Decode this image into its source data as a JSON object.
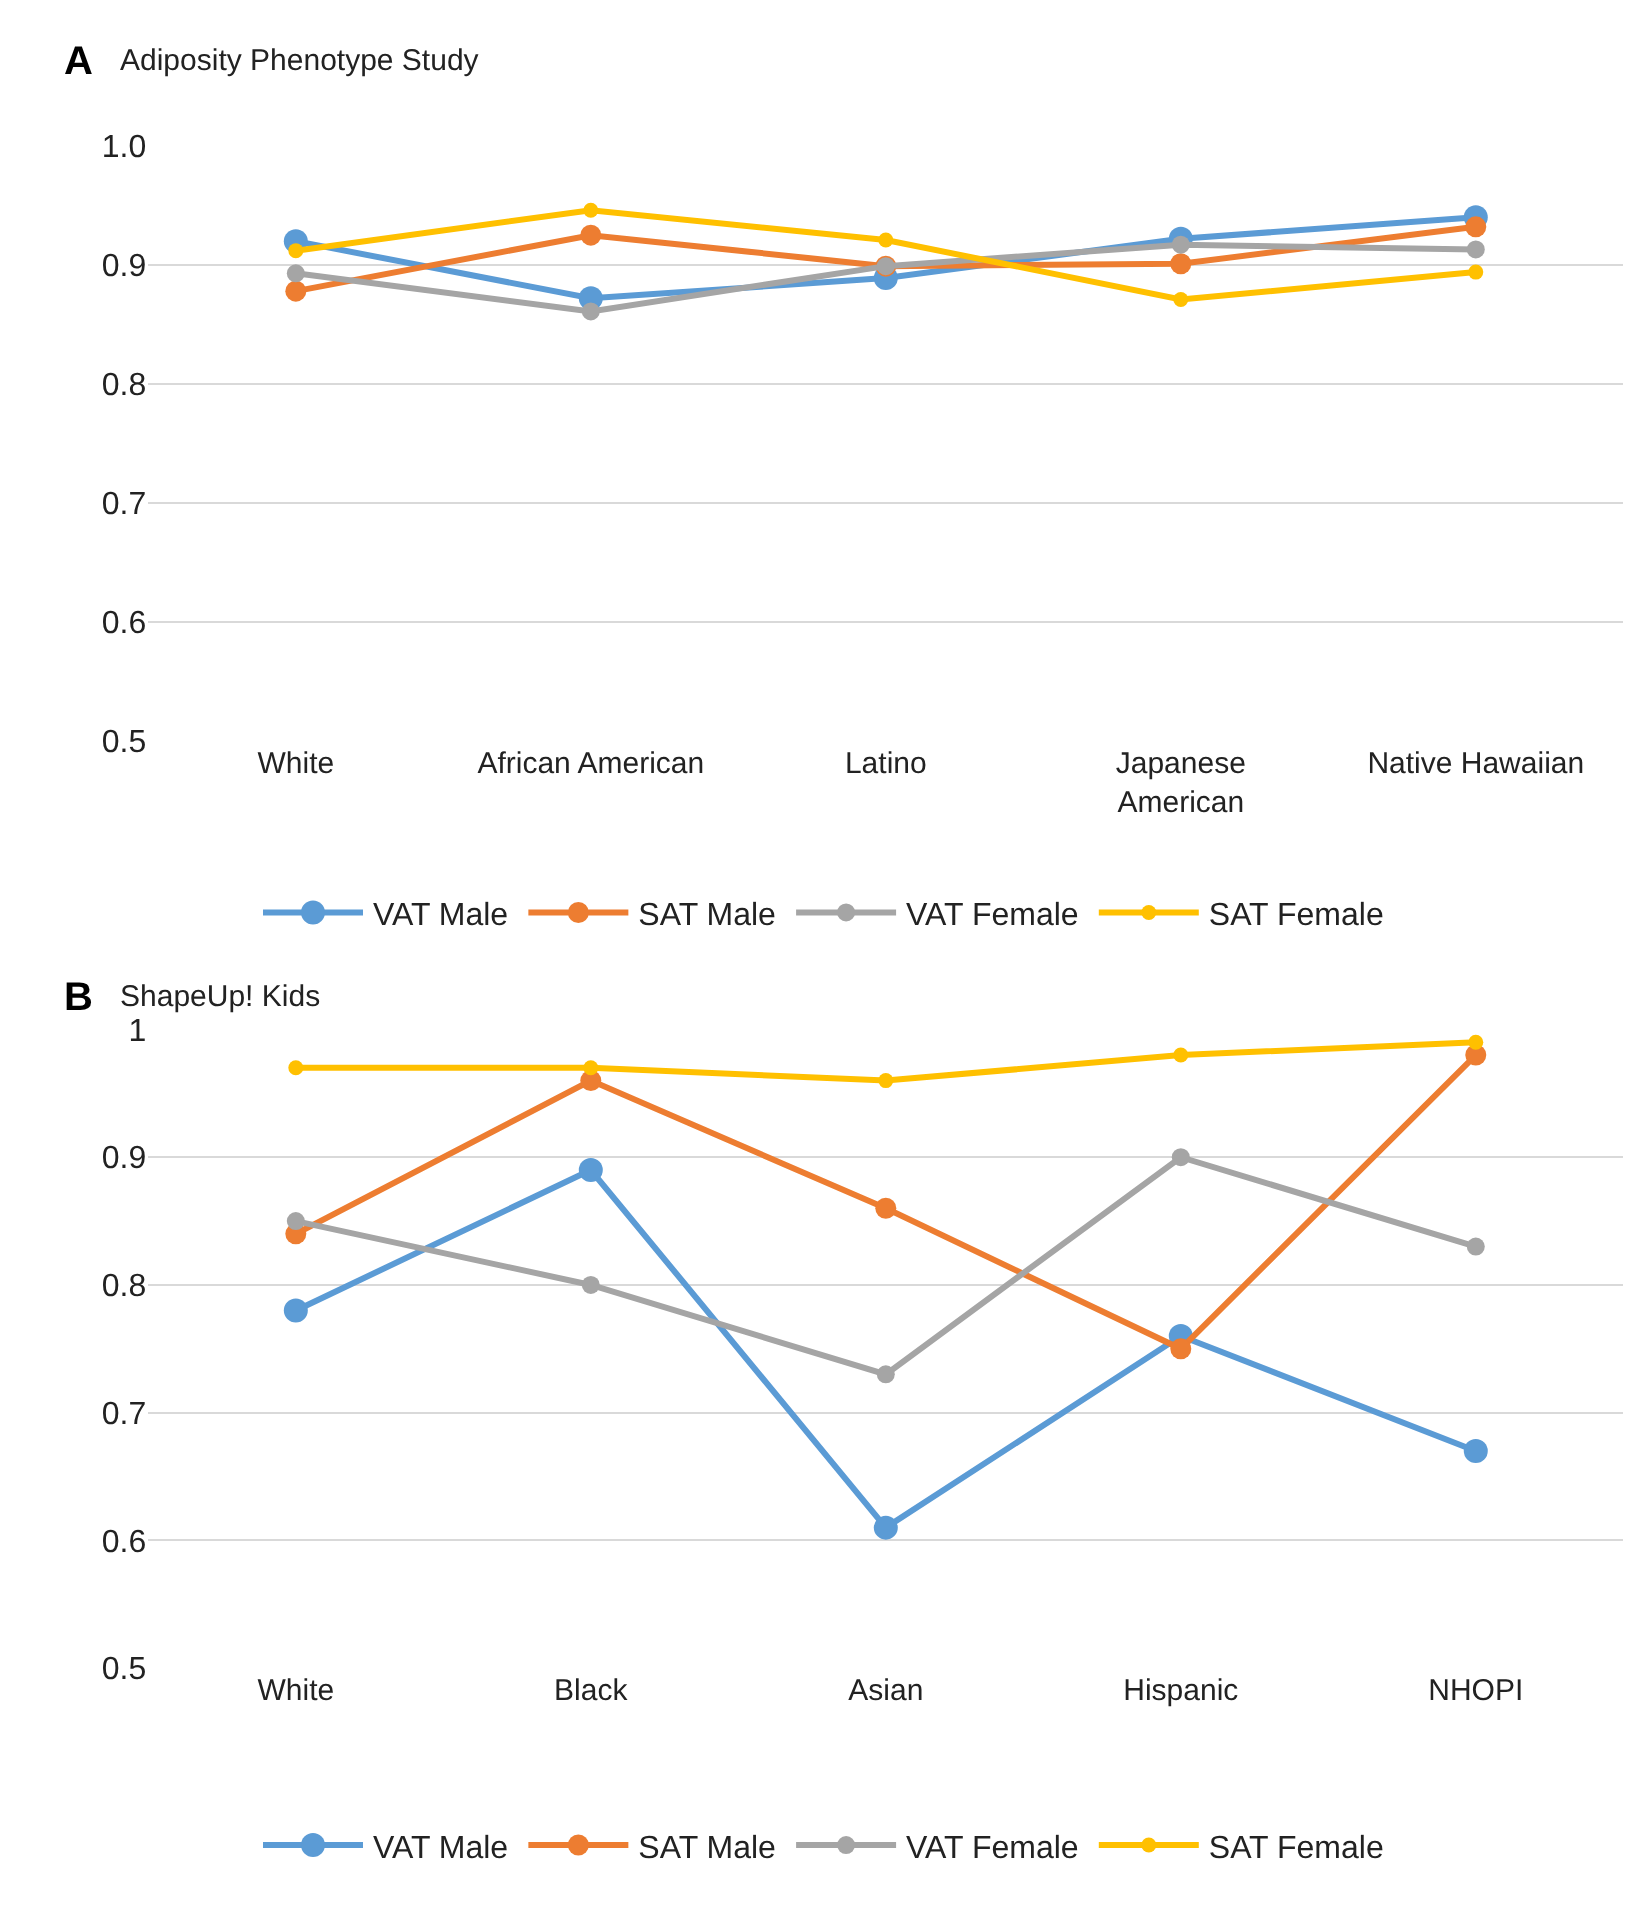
{
  "chart_data": [
    {
      "type": "line",
      "title": "A",
      "subtitle": "Adiposity Phenotype Study",
      "categories": [
        "White",
        "African American",
        "Latino",
        "Japanese\nAmerican",
        "Native Hawaiian"
      ],
      "series": [
        {
          "name": "VAT Male",
          "color": "#5b9bd5",
          "values": [
            0.92,
            0.872,
            0.889,
            0.922,
            0.94
          ]
        },
        {
          "name": "SAT Male",
          "color": "#ed7d31",
          "values": [
            0.878,
            0.925,
            0.899,
            0.901,
            0.932
          ]
        },
        {
          "name": "VAT Female",
          "color": "#a5a5a5",
          "values": [
            0.893,
            0.861,
            0.899,
            0.917,
            0.913
          ]
        },
        {
          "name": "SAT Female",
          "color": "#ffc000",
          "values": [
            0.912,
            0.946,
            0.921,
            0.871,
            0.894
          ]
        }
      ],
      "ylim": [
        0.5,
        1.0
      ],
      "yticks": [
        {
          "value": 0.5,
          "label": "0.5"
        },
        {
          "value": 0.6,
          "label": "0.6"
        },
        {
          "value": 0.7,
          "label": "0.7"
        },
        {
          "value": 0.8,
          "label": "0.8"
        },
        {
          "value": 0.9,
          "label": "0.9"
        },
        {
          "value": 1.0,
          "label": "1.0"
        }
      ],
      "grid": "y",
      "legend": "bottom",
      "marker": "circle",
      "line_style": "solid"
    },
    {
      "type": "line",
      "title": "B",
      "subtitle": "ShapeUp! Kids",
      "categories": [
        "White",
        "Black",
        "Asian",
        "Hispanic",
        "NHOPI"
      ],
      "series": [
        {
          "name": "VAT Male",
          "color": "#5b9bd5",
          "values": [
            0.78,
            0.89,
            0.61,
            0.76,
            0.67
          ]
        },
        {
          "name": "SAT Male",
          "color": "#ed7d31",
          "values": [
            0.84,
            0.96,
            0.86,
            0.75,
            0.98
          ]
        },
        {
          "name": "VAT Female",
          "color": "#a5a5a5",
          "values": [
            0.85,
            0.8,
            0.73,
            0.9,
            0.83
          ]
        },
        {
          "name": "SAT Female",
          "color": "#ffc000",
          "values": [
            0.97,
            0.97,
            0.96,
            0.98,
            0.99
          ]
        }
      ],
      "ylim": [
        0.5,
        1.0
      ],
      "yticks": [
        0.5,
        0.6,
        0.7,
        0.8,
        0.9,
        1
      ],
      "grid": "y",
      "legend": "bottom",
      "marker": "circle",
      "line_style": "solid"
    }
  ]
}
